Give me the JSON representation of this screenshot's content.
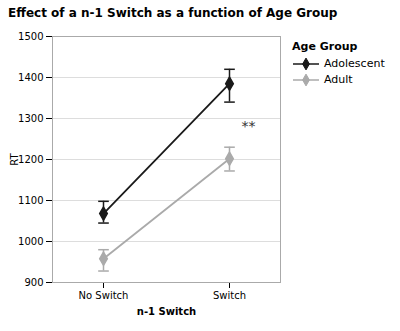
{
  "chart_data": {
    "type": "line",
    "title": "Effect of a n-1 Switch as a function of Age Group",
    "xlabel": "n-1 Switch",
    "ylabel": "RT",
    "categories": [
      "No Switch",
      "Switch"
    ],
    "series": [
      {
        "name": "Adolescent",
        "color": "#1a1a1a",
        "marker": "diamond",
        "values": [
          1068,
          1385
        ],
        "ci_lower": [
          1045,
          1340
        ],
        "ci_upper": [
          1098,
          1420
        ]
      },
      {
        "name": "Adult",
        "color": "#aaaaaa",
        "marker": "diamond",
        "values": [
          958,
          1202
        ],
        "ci_lower": [
          928,
          1172
        ],
        "ci_upper": [
          980,
          1230
        ]
      }
    ],
    "ylim": [
      900,
      1500
    ],
    "yticks": [
      900,
      1000,
      1100,
      1200,
      1300,
      1400,
      1500
    ],
    "grid": true,
    "legend": "right",
    "legend_title": "Age Group",
    "annotations": [
      {
        "text": "**",
        "x": "Switch",
        "y": 1280
      }
    ]
  }
}
